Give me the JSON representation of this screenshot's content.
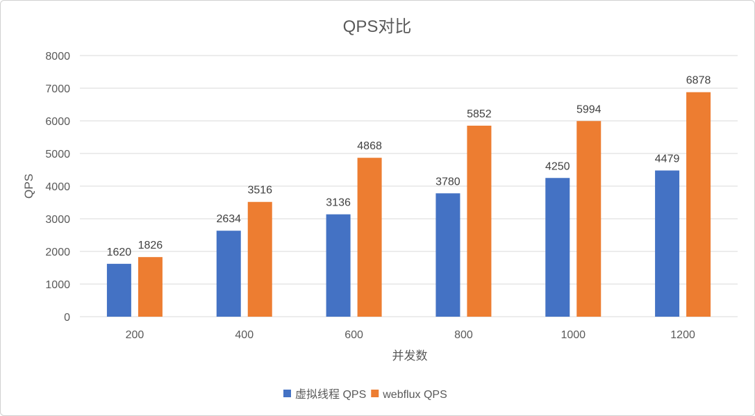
{
  "chart_data": {
    "type": "bar",
    "title": "QPS对比",
    "xlabel": "并发数",
    "ylabel": "QPS",
    "categories": [
      "200",
      "400",
      "600",
      "800",
      "1000",
      "1200"
    ],
    "series": [
      {
        "name": "虚拟线程 QPS",
        "color": "#4472C4",
        "values": [
          1620,
          2634,
          3136,
          3780,
          4250,
          4479
        ]
      },
      {
        "name": "webflux QPS",
        "color": "#ED7D31",
        "values": [
          1826,
          3516,
          4868,
          5852,
          5994,
          6878
        ]
      }
    ],
    "ylim": [
      0,
      8000
    ],
    "yticks": [
      "0",
      "1000",
      "2000",
      "3000",
      "4000",
      "5000",
      "6000",
      "7000",
      "8000"
    ],
    "grid": true,
    "legend": "bottom"
  }
}
